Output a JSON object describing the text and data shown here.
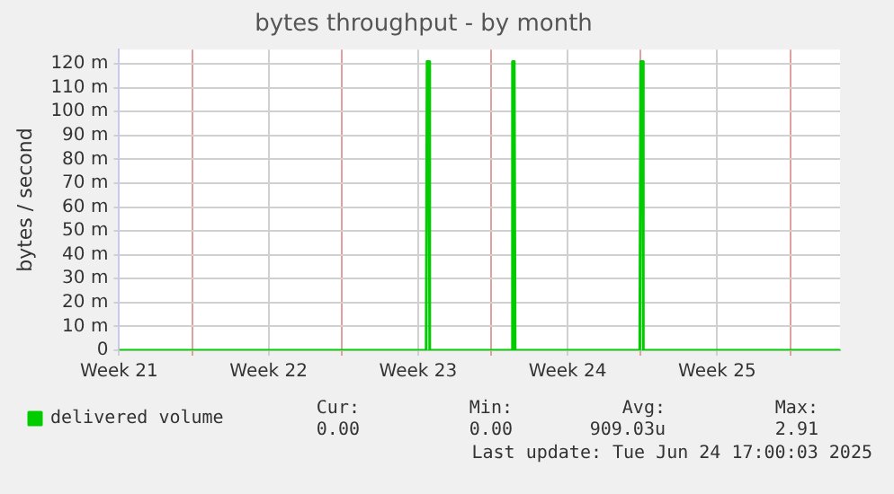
{
  "chart_data": {
    "type": "line",
    "title": "bytes throughput - by month",
    "ylabel": "bytes / second",
    "x": [
      "2025-05-19",
      "2025-06-02T09:00",
      "2025-06-02T10:00",
      "2025-06-02T12:00",
      "2025-06-02T13:00",
      "2025-06-06T09:00",
      "2025-06-06T10:00",
      "2025-06-06T12:00",
      "2025-06-06T13:00",
      "2025-06-12T09:00",
      "2025-06-12T10:00",
      "2025-06-12T12:00",
      "2025-06-12T13:00",
      "2025-06-21T18:00"
    ],
    "series": [
      {
        "name": "delivered volume",
        "color": "#00cc00",
        "values": [
          0,
          0,
          121,
          121,
          0,
          0,
          121,
          121,
          0,
          0,
          121,
          121,
          0,
          0
        ]
      }
    ],
    "xlim": [
      "2025-05-19",
      "2025-06-21T18:00"
    ],
    "xticks": [
      {
        "value": "2025-05-19",
        "label": "Week 21"
      },
      {
        "value": "2025-05-22T10:00",
        "label": null
      },
      {
        "value": "2025-05-26",
        "label": "Week 22"
      },
      {
        "value": "2025-05-29T10:00",
        "label": null
      },
      {
        "value": "2025-06-02",
        "label": "Week 23"
      },
      {
        "value": "2025-06-05T10:00",
        "label": null
      },
      {
        "value": "2025-06-09",
        "label": "Week 24"
      },
      {
        "value": "2025-06-12T10:00",
        "label": null
      },
      {
        "value": "2025-06-16",
        "label": "Week 25"
      },
      {
        "value": "2025-06-19T10:00",
        "label": null
      }
    ],
    "ylim": [
      0,
      126
    ],
    "yticks": [
      0,
      {
        "value": 10,
        "label": "10 m"
      },
      {
        "value": 20,
        "label": "20 m"
      },
      {
        "value": 30,
        "label": "30 m"
      },
      {
        "value": 40,
        "label": "40 m"
      },
      {
        "value": 50,
        "label": "50 m"
      },
      {
        "value": 60,
        "label": "60 m"
      },
      {
        "value": 70,
        "label": "70 m"
      },
      {
        "value": 80,
        "label": "80 m"
      },
      {
        "value": 90,
        "label": "90 m"
      },
      {
        "value": 100,
        "label": "100 m"
      },
      {
        "value": 110,
        "label": "110 m"
      },
      {
        "value": 120,
        "label": "120 m"
      }
    ],
    "grid": true,
    "legend": "bottom left",
    "marker": "none",
    "line_style": "solid",
    "annotations": [
      "Cur:",
      "Min:",
      "Avg:",
      "Max:",
      "0.00",
      "0.00",
      "909.03u",
      "2.91",
      "Last update: Tue Jun 24 17:00:03 2025"
    ]
  }
}
